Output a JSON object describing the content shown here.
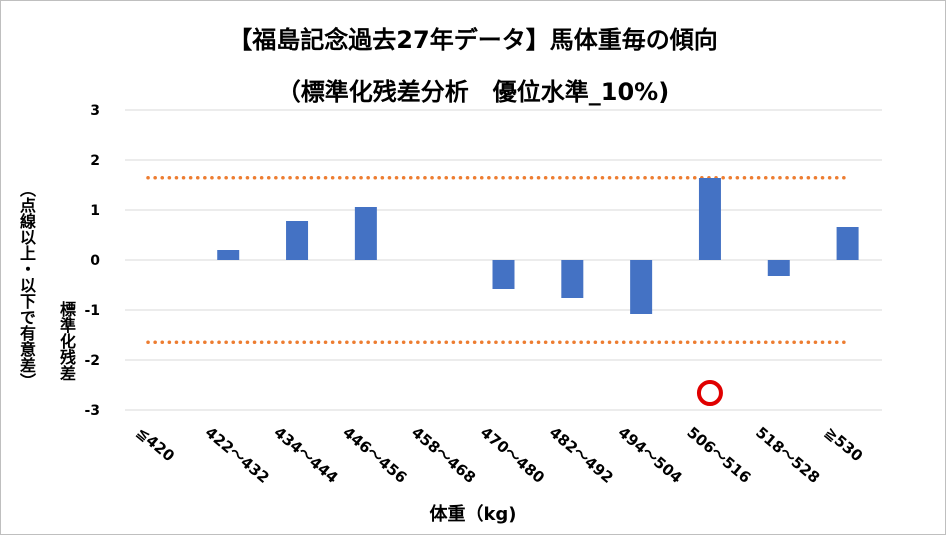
{
  "chart_data": {
    "type": "bar",
    "title": "【福島記念過去27年データ】馬体重毎の傾向",
    "subtitle": "（標準化残差分析　優位水準_10%)",
    "xlabel": "体重（kg)",
    "ylabel": "標準化残差",
    "ylabel_note": "（点線以上・以下で有意差）",
    "categories": [
      "≦420",
      "422～432",
      "434～444",
      "446～456",
      "458～468",
      "470～480",
      "482～492",
      "494～504",
      "506～516",
      "518～528",
      "≧530"
    ],
    "values": [
      0,
      0.2,
      0.78,
      1.06,
      0,
      -0.58,
      -0.76,
      -1.08,
      1.64,
      -0.32,
      0.66
    ],
    "yticks": [
      "3",
      "2",
      "1",
      "0",
      "-1",
      "-2",
      "-3"
    ],
    "ylim": [
      -3,
      3
    ],
    "threshold": 1.645,
    "highlight_category": "506～516",
    "bar_color": "#4472c4",
    "threshold_color": "#ed7d31",
    "marker_color": "#e00000",
    "grid": true
  }
}
